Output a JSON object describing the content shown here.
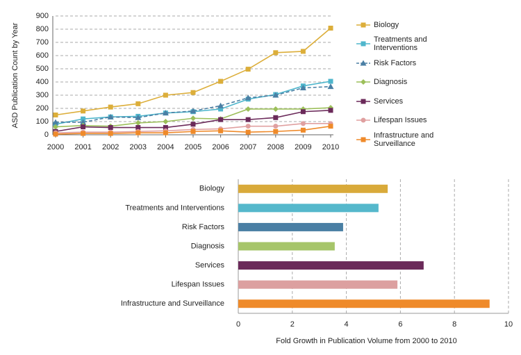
{
  "chart_data": [
    {
      "type": "line",
      "y_label": "ASD Publication Count by Year",
      "x": [
        2000,
        2001,
        2002,
        2003,
        2004,
        2005,
        2006,
        2007,
        2008,
        2009,
        2010
      ],
      "xlim": [
        2000,
        2010
      ],
      "xticks": [
        2000,
        2001,
        2002,
        2003,
        2004,
        2005,
        2006,
        2007,
        2008,
        2009,
        2010
      ],
      "ylim": [
        0,
        900
      ],
      "yticks": [
        0,
        100,
        200,
        300,
        400,
        500,
        600,
        700,
        800,
        900
      ],
      "grid": true,
      "legend": "right",
      "series": [
        {
          "name": "Biology",
          "color": "#dcae3a",
          "marker": "square",
          "dashed": false,
          "values": [
            150,
            180,
            210,
            235,
            300,
            320,
            405,
            497,
            622,
            632,
            808
          ]
        },
        {
          "name": "Treatments and Interventions",
          "color": "#4fb6cc",
          "marker": "square",
          "dashed": false,
          "values": [
            80,
            120,
            135,
            140,
            165,
            175,
            195,
            270,
            305,
            370,
            405
          ]
        },
        {
          "name": "Risk Factors",
          "color": "#4a7fa4",
          "marker": "triangle",
          "dashed": true,
          "values": [
            95,
            95,
            135,
            130,
            165,
            180,
            220,
            280,
            300,
            355,
            365
          ]
        },
        {
          "name": "Diagnosis",
          "color": "#9cbf5a",
          "marker": "diamond",
          "dashed": false,
          "values": [
            60,
            70,
            65,
            90,
            100,
            125,
            120,
            195,
            195,
            195,
            205
          ]
        },
        {
          "name": "Services",
          "color": "#6b2a5a",
          "marker": "square",
          "dashed": false,
          "values": [
            25,
            60,
            55,
            55,
            55,
            80,
            115,
            115,
            130,
            175,
            185
          ]
        },
        {
          "name": "Lifespan Issues",
          "color": "#e0a0a0",
          "marker": "circle",
          "dashed": false,
          "values": [
            15,
            20,
            20,
            25,
            30,
            40,
            45,
            65,
            65,
            85,
            85
          ]
        },
        {
          "name": "Infrastructure and Surveillance",
          "color": "#ef8a2a",
          "marker": "square",
          "dashed": false,
          "values": [
            5,
            10,
            10,
            15,
            15,
            25,
            30,
            20,
            25,
            35,
            65
          ]
        }
      ]
    },
    {
      "type": "hbar",
      "x_label": "Fold Growth in Publication Volume from 2000 to 2010",
      "categories": [
        "Biology",
        "Treatments and Interventions",
        "Risk Factors",
        "Diagnosis",
        "Services",
        "Lifespan Issues",
        "Infrastructure and Surveillance"
      ],
      "values": [
        5.53,
        5.19,
        3.88,
        3.57,
        6.86,
        5.89,
        9.3
      ],
      "colors": [
        "#d9aa3a",
        "#55b8cc",
        "#4a7fa4",
        "#a6c56a",
        "#6b2a5a",
        "#dca0a0",
        "#ef8a2a"
      ],
      "xlim": [
        0,
        10
      ],
      "xticks": [
        0,
        2,
        4,
        6,
        8,
        10
      ],
      "grid": true
    }
  ]
}
